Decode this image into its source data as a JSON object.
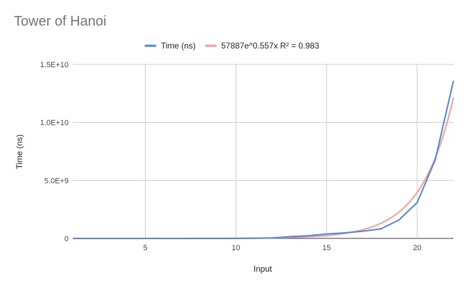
{
  "chart_data": {
    "type": "line",
    "title": "Tower of Hanoi",
    "xlabel": "Input",
    "ylabel": "Time (ns)",
    "xlim": [
      1,
      22
    ],
    "ylim": [
      0,
      15000000000
    ],
    "x_ticks": [
      5,
      10,
      15,
      20
    ],
    "y_ticks": [
      0,
      5000000000,
      10000000000,
      15000000000
    ],
    "y_tick_labels": [
      "0",
      "5.0E+9",
      "1.0E+10",
      "1.5E+10"
    ],
    "grid": true,
    "legend_position": "top",
    "series": [
      {
        "name": "Time (ns)",
        "color": "#4a86e8",
        "x": [
          1,
          2,
          3,
          4,
          5,
          6,
          7,
          8,
          9,
          10,
          11,
          12,
          13,
          14,
          15,
          16,
          17,
          18,
          19,
          20,
          21,
          22
        ],
        "values": [
          1000,
          2000,
          4000,
          9000,
          18000,
          36000,
          72000,
          150000,
          300000,
          650000,
          12000000,
          40000000,
          160000000,
          230000000,
          380000000,
          480000000,
          620000000,
          820000000,
          1600000000,
          3100000000,
          6800000000,
          13600000000
        ]
      },
      {
        "name": "57887e^0.557x R² = 0.983",
        "color": "#ff9a96",
        "type": "trendline",
        "equation": {
          "a": 57887,
          "b": 0.557
        },
        "r_squared": 0.983
      }
    ]
  }
}
